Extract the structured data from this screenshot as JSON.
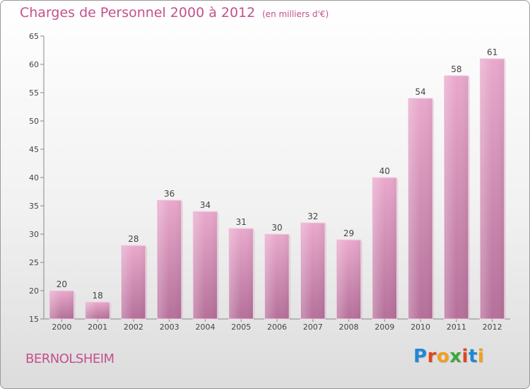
{
  "header": {
    "title": "Charges de Personnel 2000 à 2012",
    "subtitle": "(en milliers d'€)"
  },
  "footer": {
    "town": "BERNOLSHEIM",
    "logo_text": "Proxiti",
    "logo_colors": [
      "#1e88d8",
      "#e0451f",
      "#f0a020",
      "#3da83a",
      "#e0451f",
      "#1e88d8",
      "#f0a020"
    ]
  },
  "colors": {
    "accent": "#c4508c",
    "bar_top": "#e9a9cc",
    "bar_bottom": "#b5709a",
    "axis": "#888888"
  },
  "chart_data": {
    "type": "bar",
    "title": "Charges de Personnel 2000 à 2012",
    "subtitle": "(en milliers d'€)",
    "xlabel": "",
    "ylabel": "",
    "categories": [
      "2000",
      "2001",
      "2002",
      "2003",
      "2004",
      "2005",
      "2006",
      "2007",
      "2008",
      "2009",
      "2010",
      "2011",
      "2012"
    ],
    "values": [
      20,
      18,
      28,
      36,
      34,
      31,
      30,
      32,
      29,
      40,
      54,
      58,
      61
    ],
    "ylim": [
      15,
      65
    ],
    "yticks": [
      15,
      20,
      25,
      30,
      35,
      40,
      45,
      50,
      55,
      60,
      65
    ],
    "grid": false,
    "legend": "none",
    "data_labels": true
  }
}
